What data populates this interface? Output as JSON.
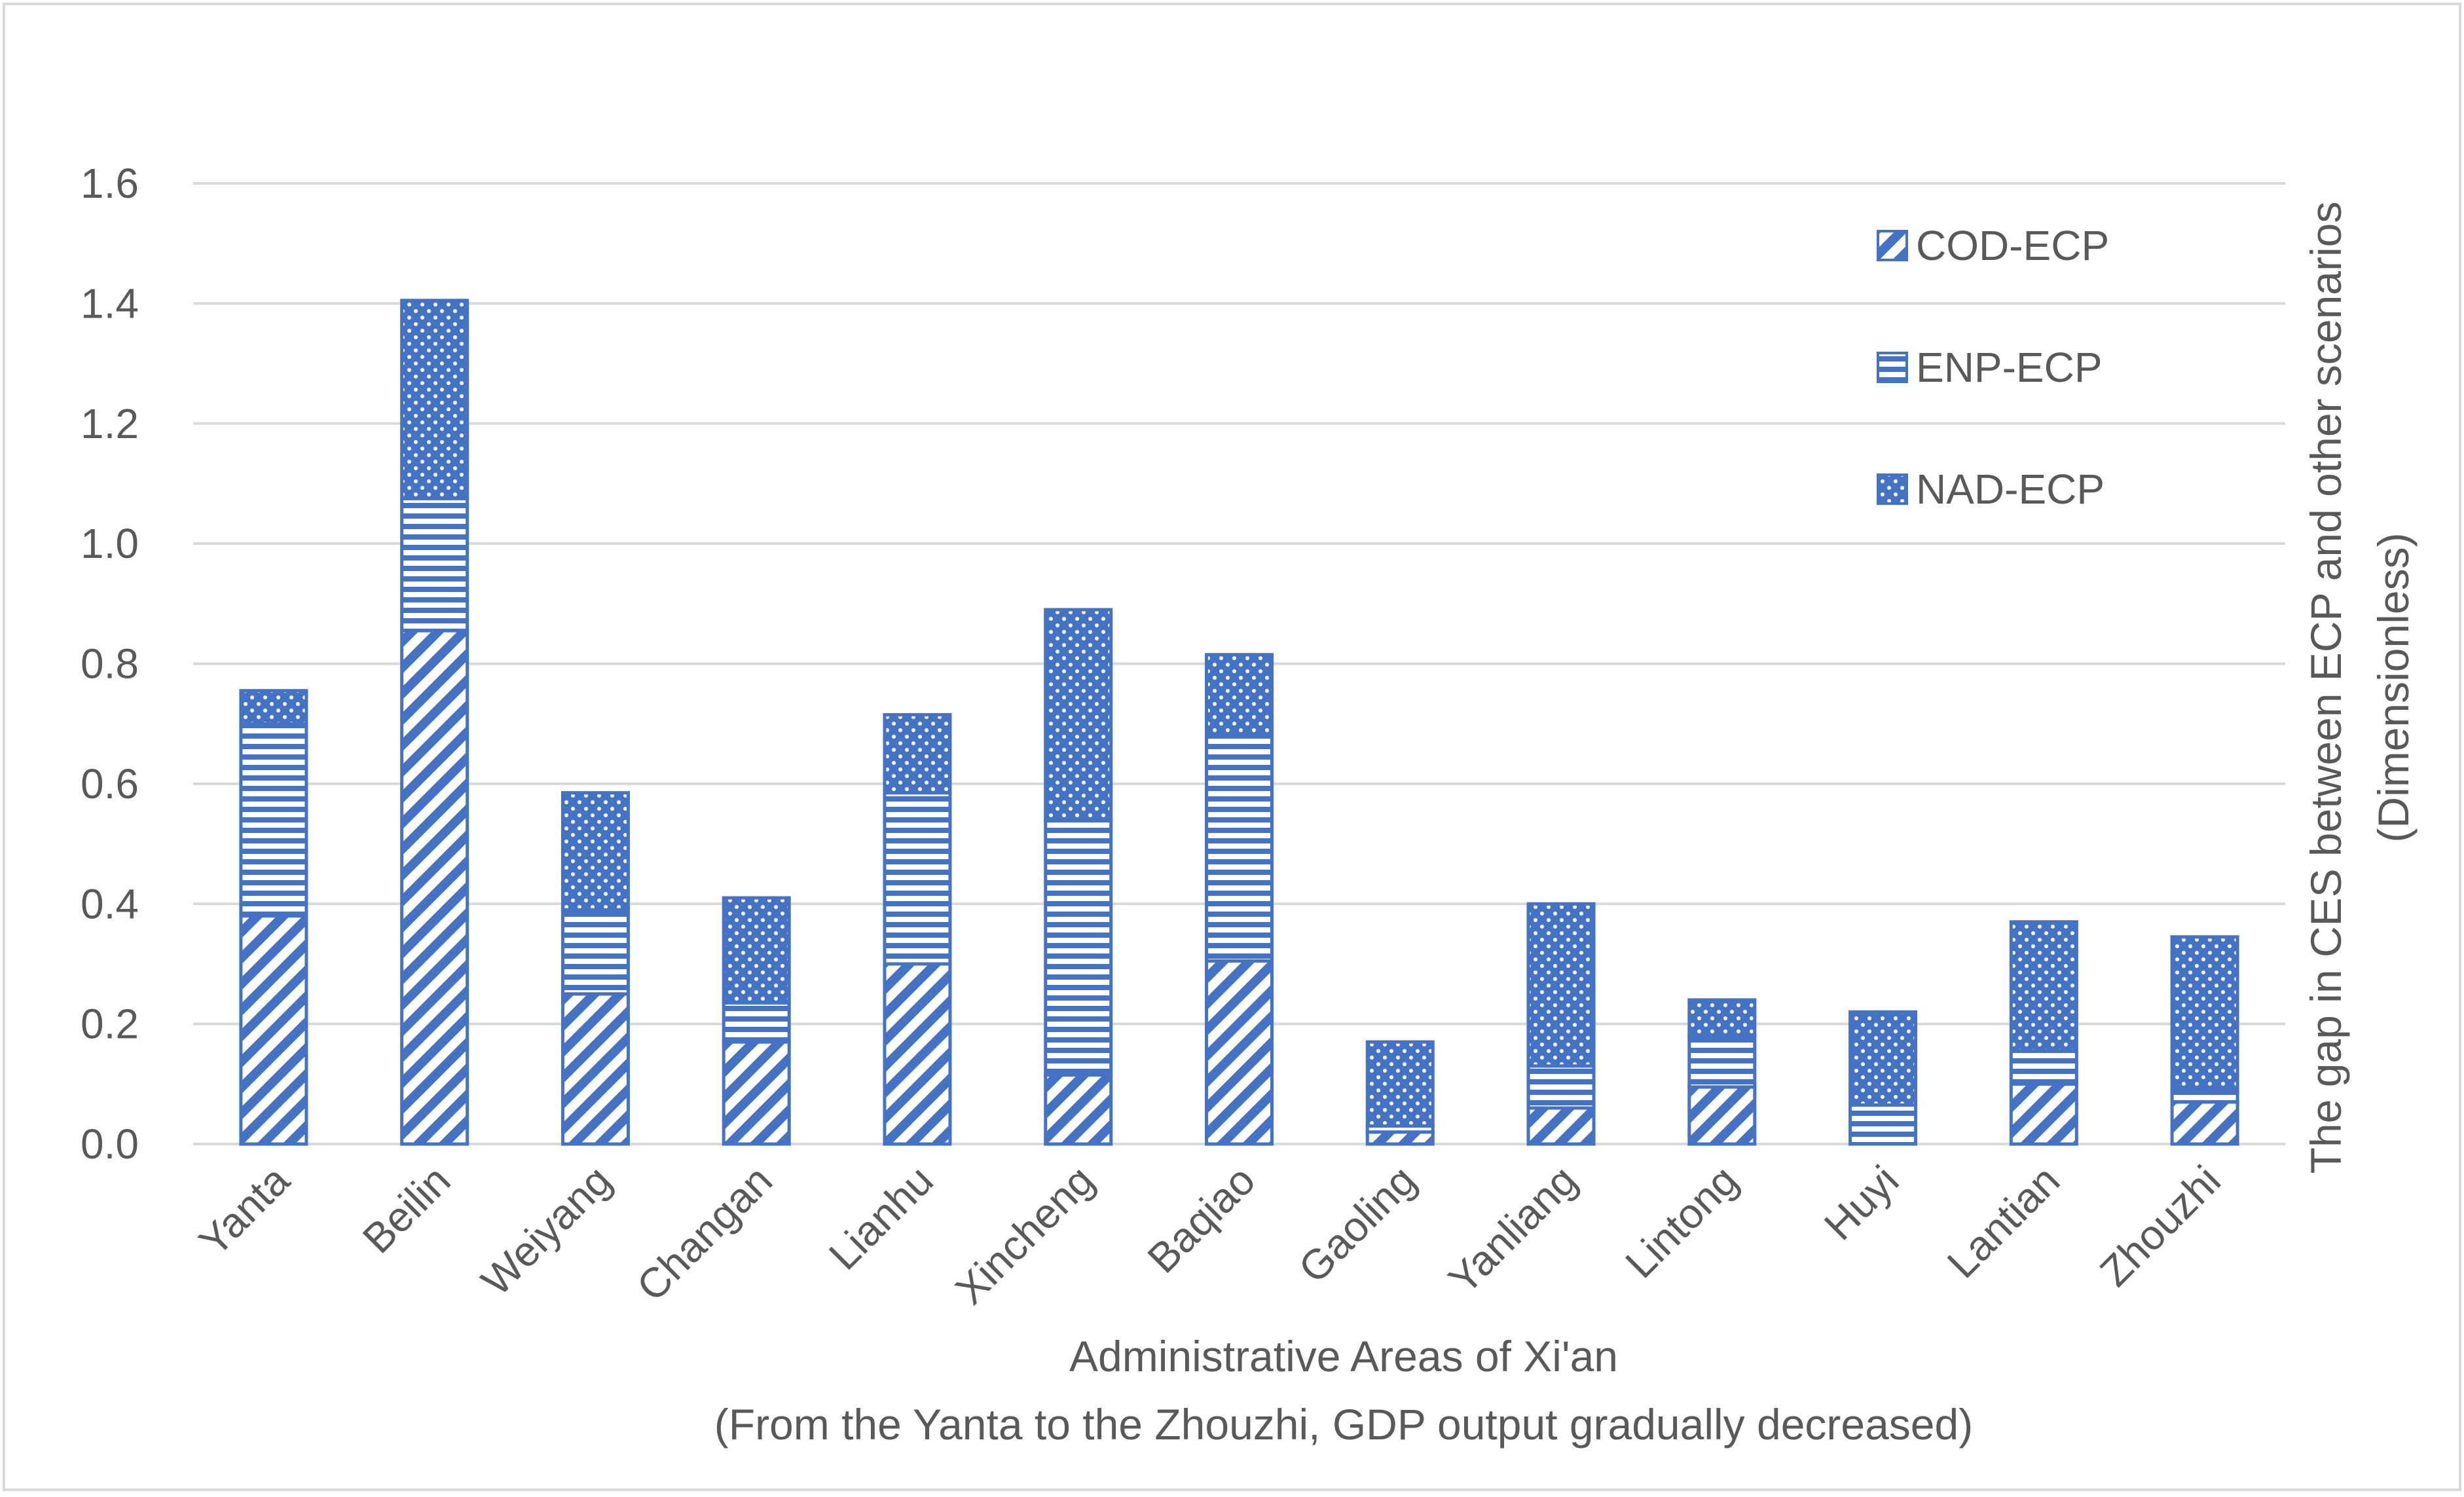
{
  "colors": {
    "series": "#4472C4",
    "grid": "#D9D9D9",
    "text": "#595959",
    "border": "#D9D9D9",
    "background": "#FFFFFF"
  },
  "chart_data": {
    "type": "bar",
    "stacked": true,
    "title": "",
    "categories": [
      "Yanta",
      "Beilin",
      "Weiyang",
      "Changan",
      "Lianhu",
      "Xincheng",
      "Baqiao",
      "Gaoling",
      "Yanliang",
      "Lintong",
      "Huyi",
      "Lantian",
      "Zhouzhi"
    ],
    "series": [
      {
        "name": "COD-ECP",
        "pattern": "diagonal-stripes",
        "values": [
          0.38,
          0.855,
          0.25,
          0.17,
          0.3,
          0.115,
          0.305,
          0.02,
          0.06,
          0.095,
          0.0,
          0.1,
          0.07
        ]
      },
      {
        "name": "ENP-ECP",
        "pattern": "horizontal-stripes",
        "values": [
          0.32,
          0.22,
          0.14,
          0.065,
          0.285,
          0.425,
          0.375,
          0.01,
          0.07,
          0.085,
          0.065,
          0.055,
          0.02
        ]
      },
      {
        "name": "NAD-ECP",
        "pattern": "dots",
        "values": [
          0.055,
          0.33,
          0.195,
          0.175,
          0.13,
          0.35,
          0.135,
          0.14,
          0.27,
          0.06,
          0.155,
          0.215,
          0.255
        ]
      }
    ],
    "ylim": [
      0,
      1.6
    ],
    "yticks": [
      "0.0",
      "0.2",
      "0.4",
      "0.6",
      "0.8",
      "1.0",
      "1.2",
      "1.4",
      "1.6"
    ],
    "ytick_values": [
      0,
      0.2,
      0.4,
      0.6,
      0.8,
      1.0,
      1.2,
      1.4,
      1.6
    ],
    "xlabel": "Administrative Areas of Xi'an",
    "xlabel_sub": "(From the Yanta to the Zhouzhi, GDP output gradually decreased)",
    "ylabel": "The gap in CES between ECP and other scenarios",
    "ylabel_sub": "(Dimensionless)",
    "ylabel_position": "right",
    "grid": true,
    "legend_position": "top-right"
  }
}
